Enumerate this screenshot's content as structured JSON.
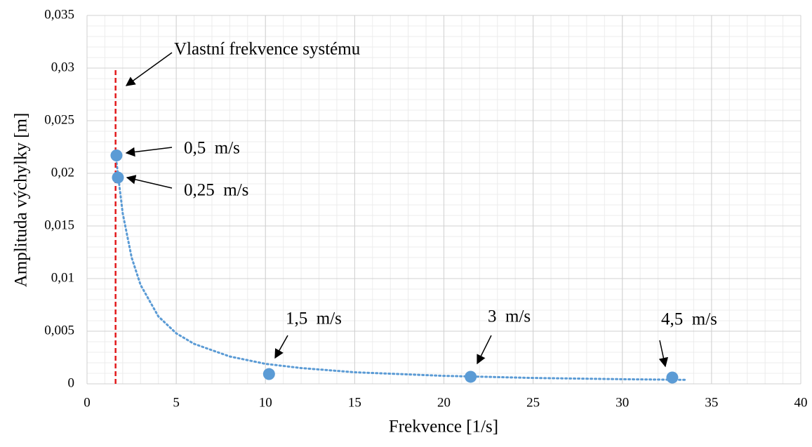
{
  "chart_data": {
    "type": "scatter",
    "xlabel": "Frekvence [1/s]",
    "ylabel": "Amplituda výchylky [m]",
    "series": [
      {
        "color": "#5b9bd5",
        "x": [
          1.65,
          1.73,
          10.2,
          21.5,
          32.8
        ],
        "values": [
          0.0217,
          0.0196,
          0.00093,
          0.00067,
          0.0006
        ]
      }
    ],
    "trendline": {
      "color": "#5b9bd5",
      "x": [
        1.6,
        2,
        2.5,
        3,
        4,
        5,
        6,
        8,
        10,
        12,
        15,
        20,
        25,
        30,
        33.6
      ],
      "values": [
        0.0218,
        0.0162,
        0.012,
        0.0094,
        0.0064,
        0.0048,
        0.0038,
        0.0026,
        0.0019,
        0.0015,
        0.0011,
        0.00076,
        0.00056,
        0.00044,
        0.00038
      ]
    },
    "vline": {
      "color": "#e31a1c",
      "x": 1.6,
      "y": [
        0,
        0.03
      ]
    },
    "annotations": [
      "Vlastní frekvence systému",
      "0,5  m/s",
      "0,25  m/s",
      "1,5  m/s",
      "3  m/s",
      "4,5  m/s"
    ],
    "xlim": [
      0,
      40
    ],
    "xticks": [
      0,
      5,
      10,
      15,
      20,
      25,
      30,
      35,
      40
    ],
    "ylim": [
      0,
      0.035
    ],
    "yticks": [
      0,
      {
        "value": 0.005,
        "label": "0,005"
      },
      {
        "value": 0.01,
        "label": "0,01"
      },
      {
        "value": 0.015,
        "label": "0,015"
      },
      {
        "value": 0.02,
        "label": "0,02"
      },
      {
        "value": 0.025,
        "label": "0,025"
      },
      {
        "value": 0.03,
        "label": "0,03"
      },
      {
        "value": 0.035,
        "label": "0,035"
      }
    ],
    "grid": true,
    "xminor": 1,
    "yminor": 0.001
  }
}
